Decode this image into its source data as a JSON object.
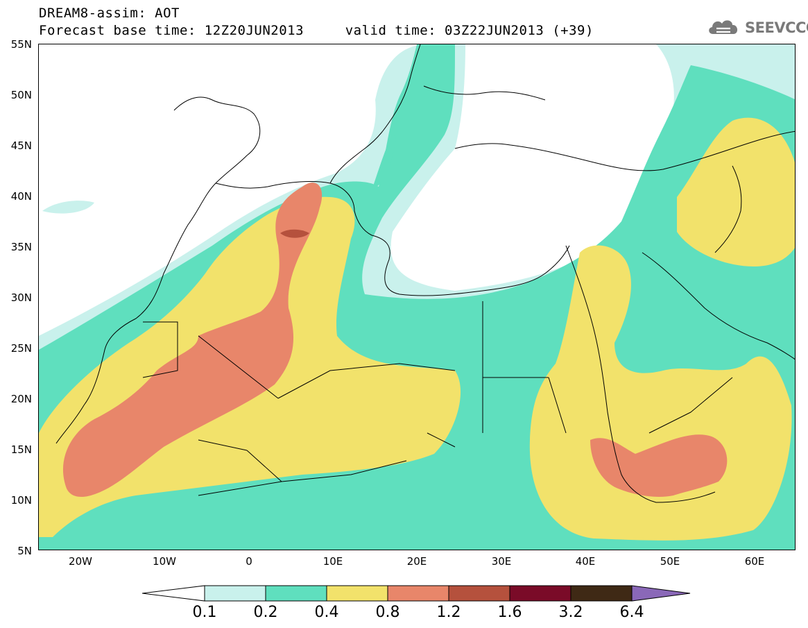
{
  "header": {
    "title_line1": "DREAM8-assim: AOT",
    "title_line2": "Forecast base time: 12Z20JUN2013     valid time: 03Z22JUN2013 (+39)",
    "logo_text": "SEEVCCC",
    "logo_icon": "cloud-icon"
  },
  "map": {
    "variable": "AOT",
    "lat_ticks": [
      "55N",
      "50N",
      "45N",
      "40N",
      "35N",
      "30N",
      "25N",
      "20N",
      "15N",
      "10N",
      "5N"
    ],
    "lon_ticks": [
      "20W",
      "10W",
      "0",
      "10E",
      "20E",
      "30E",
      "40E",
      "50E",
      "60E"
    ],
    "lat_range": [
      5,
      55
    ],
    "lon_range": [
      -25,
      65
    ]
  },
  "colorbar": {
    "labels": [
      "0.1",
      "0.2",
      "0.4",
      "0.8",
      "1.2",
      "1.6",
      "3.2",
      "6.4"
    ],
    "colors": [
      "#c9f1ec",
      "#5fdfbe",
      "#f2e26b",
      "#e8866a",
      "#b5513d",
      "#7a0b28",
      "#3f2915",
      "#8a68b8"
    ]
  }
}
